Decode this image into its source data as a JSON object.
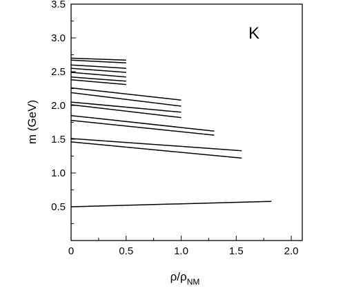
{
  "chart_data": {
    "type": "line",
    "panel_label": "K",
    "ylabel": "m (GeV)",
    "xlabel": {
      "main": "ρ/ρ",
      "sub": "NM"
    },
    "xlim": [
      0,
      2.1
    ],
    "ylim": [
      0,
      3.5
    ],
    "x_ticks": [
      0,
      0.5,
      1.0,
      1.5,
      2.0
    ],
    "x_tick_labels": [
      "0",
      "0.5",
      "1.0",
      "1.5",
      "2.0"
    ],
    "y_ticks": [
      0.5,
      1.0,
      1.5,
      2.0,
      2.5,
      3.0,
      3.5
    ],
    "y_tick_labels": [
      "0.5",
      "1.0",
      "1.5",
      "2.0",
      "2.5",
      "3.0",
      "3.5"
    ],
    "series": [
      {
        "x": [
          0,
          0.5
        ],
        "y": [
          2.7,
          2.67
        ]
      },
      {
        "x": [
          0,
          0.5
        ],
        "y": [
          2.67,
          2.63
        ]
      },
      {
        "x": [
          0,
          0.5
        ],
        "y": [
          2.6,
          2.55
        ]
      },
      {
        "x": [
          0,
          0.5
        ],
        "y": [
          2.55,
          2.49
        ]
      },
      {
        "x": [
          0,
          0.5
        ],
        "y": [
          2.49,
          2.42
        ]
      },
      {
        "x": [
          0,
          0.5
        ],
        "y": [
          2.42,
          2.36
        ]
      },
      {
        "x": [
          0,
          0.5
        ],
        "y": [
          2.38,
          2.31
        ]
      },
      {
        "x": [
          0,
          1.0
        ],
        "y": [
          2.26,
          2.08
        ]
      },
      {
        "x": [
          0,
          1.0
        ],
        "y": [
          2.19,
          1.99
        ]
      },
      {
        "x": [
          0,
          1.0
        ],
        "y": [
          2.05,
          1.9
        ]
      },
      {
        "x": [
          0,
          1.0
        ],
        "y": [
          2.01,
          1.82
        ]
      },
      {
        "x": [
          0,
          1.3
        ],
        "y": [
          1.85,
          1.62
        ]
      },
      {
        "x": [
          0,
          1.3
        ],
        "y": [
          1.78,
          1.56
        ]
      },
      {
        "x": [
          0,
          1.55
        ],
        "y": [
          1.51,
          1.33
        ]
      },
      {
        "x": [
          0,
          1.55
        ],
        "y": [
          1.46,
          1.22
        ]
      },
      {
        "x": [
          0,
          1.82
        ],
        "y": [
          0.5,
          0.58
        ]
      }
    ]
  }
}
